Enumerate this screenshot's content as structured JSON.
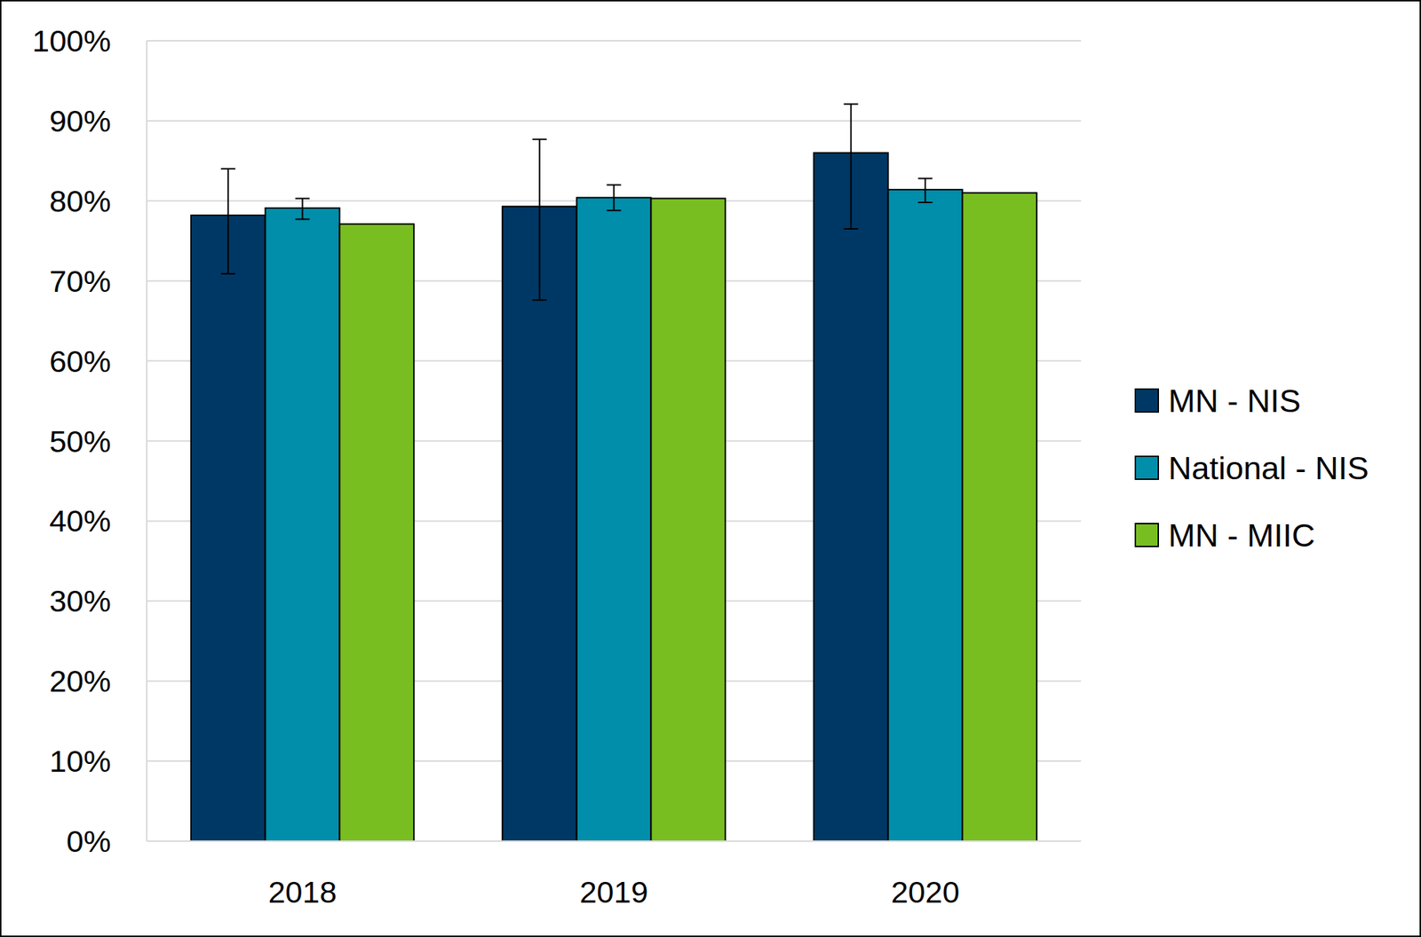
{
  "chart_data": {
    "type": "bar",
    "categories": [
      "2018",
      "2019",
      "2020"
    ],
    "series": [
      {
        "name": "MN - NIS",
        "color": "#003865",
        "values": [
          78.2,
          79.3,
          86.0
        ],
        "ci_low": [
          70.9,
          67.6,
          76.5
        ],
        "ci_high": [
          84.0,
          87.7,
          92.1
        ]
      },
      {
        "name": "National - NIS",
        "color": "#008eaa",
        "values": [
          79.1,
          80.4,
          81.4
        ],
        "ci_low": [
          77.7,
          78.8,
          79.8
        ],
        "ci_high": [
          80.3,
          82.0,
          82.8
        ]
      },
      {
        "name": "MN - MIIC",
        "color": "#78be21",
        "values": [
          77.1,
          80.3,
          81.0
        ]
      }
    ],
    "ylim": [
      0,
      100
    ],
    "yticks": [
      {
        "value": 0,
        "label": "0%"
      },
      {
        "value": 10,
        "label": "10%"
      },
      {
        "value": 20,
        "label": "20%"
      },
      {
        "value": 30,
        "label": "30%"
      },
      {
        "value": 40,
        "label": "40%"
      },
      {
        "value": 50,
        "label": "50%"
      },
      {
        "value": 60,
        "label": "60%"
      },
      {
        "value": 70,
        "label": "70%"
      },
      {
        "value": 80,
        "label": "80%"
      },
      {
        "value": 90,
        "label": "90%"
      },
      {
        "value": 100,
        "label": "100%"
      }
    ],
    "grid": true,
    "legend": "right"
  }
}
